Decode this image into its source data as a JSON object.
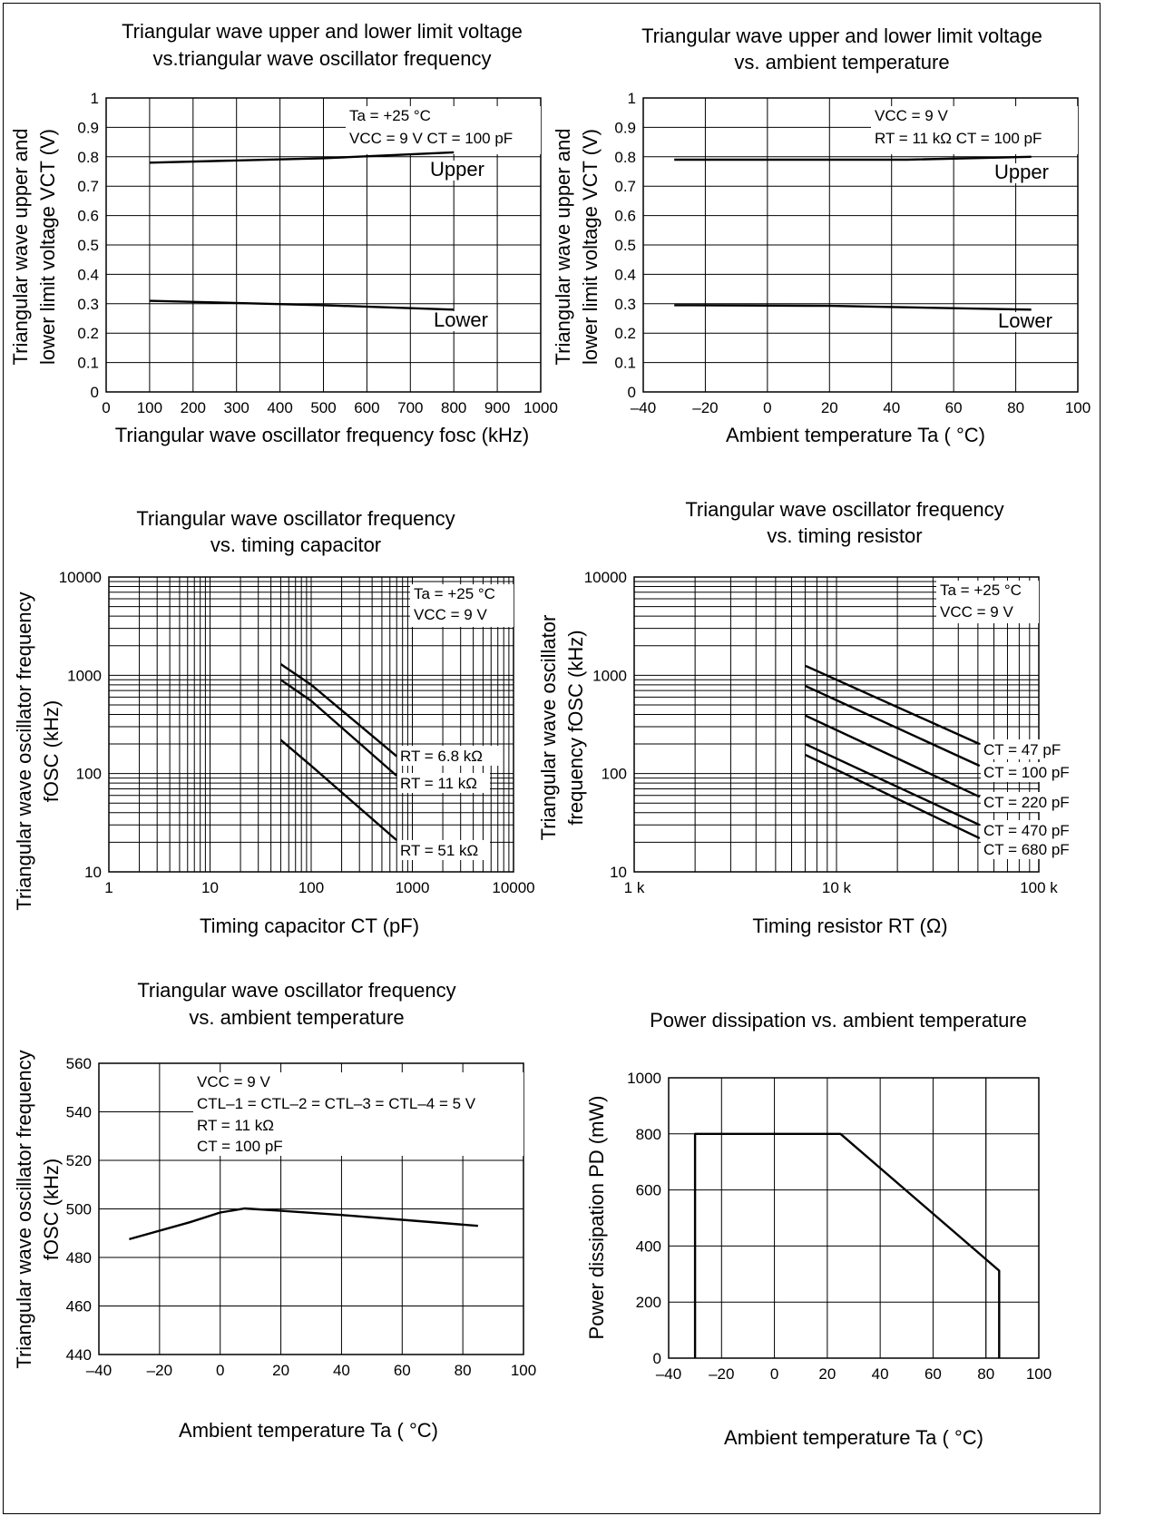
{
  "chart_data": [
    {
      "id": "c1",
      "type": "line",
      "title": [
        "Triangular wave upper and lower limit voltage",
        "vs.triangular wave oscillator frequency"
      ],
      "xlabel": "Triangular wave oscillator frequency fosc (kHz)",
      "ylabel": [
        "Triangular wave upper and",
        "lower limit voltage VCT (V)"
      ],
      "xlim": [
        0,
        1000
      ],
      "ylim": [
        0,
        1
      ],
      "xscale": "linear",
      "yscale": "linear",
      "x_ticks": [
        0,
        100,
        200,
        300,
        400,
        500,
        600,
        700,
        800,
        900,
        1000
      ],
      "x_tick_labels": [
        "0",
        "100",
        "200",
        "300",
        "400",
        "500",
        "600",
        "700",
        "800",
        "900",
        "1000"
      ],
      "y_ticks": [
        0,
        0.1,
        0.2,
        0.3,
        0.4,
        0.5,
        0.6,
        0.7,
        0.8,
        0.9,
        1
      ],
      "y_tick_labels": [
        "0",
        "0.1",
        "0.2",
        "0.3",
        "0.4",
        "0.5",
        "0.6",
        "0.7",
        "0.8",
        "0.9",
        "1"
      ],
      "grid": true,
      "annotations": [
        "Ta = +25 °C",
        "VCC = 9 V CT = 100 pF"
      ],
      "series": [
        {
          "name": "Upper",
          "x": [
            100,
            500,
            800
          ],
          "y": [
            0.78,
            0.795,
            0.815
          ]
        },
        {
          "name": "Lower",
          "x": [
            100,
            500,
            800
          ],
          "y": [
            0.31,
            0.295,
            0.28
          ]
        }
      ]
    },
    {
      "id": "c2",
      "type": "line",
      "title": [
        "Triangular wave upper and lower limit voltage",
        "vs. ambient temperature"
      ],
      "xlabel": "Ambient temperature Ta ( °C)",
      "ylabel": [
        "Triangular wave upper and",
        "lower limit voltage VCT (V)"
      ],
      "xlim": [
        -40,
        100
      ],
      "ylim": [
        0,
        1
      ],
      "xscale": "linear",
      "yscale": "linear",
      "x_ticks": [
        -40,
        -20,
        0,
        20,
        40,
        60,
        80,
        100
      ],
      "x_tick_labels": [
        "–40",
        "–20",
        "0",
        "20",
        "40",
        "60",
        "80",
        "100"
      ],
      "y_ticks": [
        0,
        0.1,
        0.2,
        0.3,
        0.4,
        0.5,
        0.6,
        0.7,
        0.8,
        0.9,
        1
      ],
      "y_tick_labels": [
        "0",
        "0.1",
        "0.2",
        "0.3",
        "0.4",
        "0.5",
        "0.6",
        "0.7",
        "0.8",
        "0.9",
        "1"
      ],
      "grid": true,
      "annotations": [
        "VCC = 9 V",
        "RT = 11 kΩ CT = 100 pF"
      ],
      "series": [
        {
          "name": "Upper",
          "x": [
            -30,
            45,
            85
          ],
          "y": [
            0.79,
            0.79,
            0.8
          ]
        },
        {
          "name": "Lower",
          "x": [
            -30,
            20,
            85
          ],
          "y": [
            0.295,
            0.293,
            0.28
          ]
        }
      ]
    },
    {
      "id": "c3",
      "type": "line",
      "title": [
        "Triangular wave oscillator frequency",
        "vs. timing capacitor"
      ],
      "xlabel": "Timing capacitor CT (pF)",
      "ylabel": [
        "Triangular wave oscillator frequency",
        "fOSC (kHz)"
      ],
      "xlim": [
        1,
        10000
      ],
      "ylim": [
        10,
        10000
      ],
      "xscale": "log",
      "yscale": "log",
      "x_ticks": [
        1,
        10,
        100,
        1000,
        10000
      ],
      "x_tick_labels": [
        "1",
        "10",
        "100",
        "1000",
        "10000"
      ],
      "y_ticks": [
        10,
        100,
        1000,
        10000
      ],
      "y_tick_labels": [
        "10",
        "100",
        "1000",
        "10000"
      ],
      "grid": true,
      "annotations": [
        "Ta = +25 °C",
        "VCC = 9 V"
      ],
      "series": [
        {
          "name": "RT = 6.8 kΩ",
          "x": [
            50,
            100,
            700
          ],
          "y": [
            1300,
            800,
            150
          ]
        },
        {
          "name": "RT = 11 kΩ",
          "x": [
            50,
            100,
            700
          ],
          "y": [
            900,
            550,
            95
          ]
        },
        {
          "name": "RT = 51 kΩ",
          "x": [
            50,
            100,
            700
          ],
          "y": [
            220,
            120,
            21
          ]
        }
      ]
    },
    {
      "id": "c4",
      "type": "line",
      "title": [
        "Triangular wave oscillator frequency",
        "vs. timing resistor"
      ],
      "xlabel": "Timing resistor RT (Ω)",
      "ylabel": [
        "Triangular wave oscillator",
        "frequency fOSC (kHz)"
      ],
      "xlim": [
        1000,
        100000
      ],
      "ylim": [
        10,
        10000
      ],
      "xscale": "log",
      "yscale": "log",
      "x_ticks": [
        1000,
        10000,
        100000
      ],
      "x_tick_labels": [
        "1 k",
        "10 k",
        "100 k"
      ],
      "y_ticks": [
        10,
        100,
        1000,
        10000
      ],
      "y_tick_labels": [
        "10",
        "100",
        "1000",
        "10000"
      ],
      "grid": true,
      "annotations": [
        "Ta = +25 °C",
        "VCC = 9 V"
      ],
      "series": [
        {
          "name": "CT = 47 pF",
          "x": [
            7000,
            51000
          ],
          "y": [
            1250,
            200
          ]
        },
        {
          "name": "CT = 100 pF",
          "x": [
            7000,
            51000
          ],
          "y": [
            780,
            120
          ]
        },
        {
          "name": "CT = 220 pF",
          "x": [
            7000,
            51000
          ],
          "y": [
            390,
            58
          ]
        },
        {
          "name": "CT = 470 pF",
          "x": [
            7000,
            51000
          ],
          "y": [
            200,
            30
          ]
        },
        {
          "name": "CT = 680 pF",
          "x": [
            7000,
            51000
          ],
          "y": [
            155,
            22
          ]
        }
      ]
    },
    {
      "id": "c5",
      "type": "line",
      "title": [
        "Triangular wave oscillator frequency",
        "vs. ambient temperature"
      ],
      "xlabel": "Ambient temperature Ta ( °C)",
      "ylabel": [
        "Triangular wave oscillator frequency",
        "fOSC (kHz)"
      ],
      "xlim": [
        -40,
        100
      ],
      "ylim": [
        440,
        560
      ],
      "xscale": "linear",
      "yscale": "linear",
      "x_ticks": [
        -40,
        -20,
        0,
        20,
        40,
        60,
        80,
        100
      ],
      "x_tick_labels": [
        "–40",
        "–20",
        "0",
        "20",
        "40",
        "60",
        "80",
        "100"
      ],
      "y_ticks": [
        440,
        460,
        480,
        500,
        520,
        540,
        560
      ],
      "y_tick_labels": [
        "440",
        "460",
        "480",
        "500",
        "520",
        "540",
        "560"
      ],
      "grid": true,
      "annotations": [
        "VCC = 9 V",
        "CTL–1 = CTL–2 = CTL–3 = CTL–4 = 5 V",
        "RT = 11 kΩ",
        "CT = 100 pF"
      ],
      "series": [
        {
          "name": "",
          "x": [
            -30,
            -10,
            0,
            8,
            20,
            40,
            60,
            85
          ],
          "y": [
            487.5,
            494.5,
            498.5,
            500.2,
            499.2,
            497.5,
            495.5,
            493
          ]
        }
      ]
    },
    {
      "id": "c6",
      "type": "line",
      "title": [
        "Power dissipation vs. ambient temperature"
      ],
      "xlabel": "Ambient temperature Ta ( °C)",
      "ylabel": [
        "Power dissipation PD (mW)"
      ],
      "xlim": [
        -40,
        100
      ],
      "ylim": [
        0,
        1000
      ],
      "xscale": "linear",
      "yscale": "linear",
      "x_ticks": [
        -40,
        -20,
        0,
        20,
        40,
        60,
        80,
        100
      ],
      "x_tick_labels": [
        "–40",
        "–20",
        "0",
        "20",
        "40",
        "60",
        "80",
        "100"
      ],
      "y_ticks": [
        0,
        200,
        400,
        600,
        800,
        1000
      ],
      "y_tick_labels": [
        "0",
        "200",
        "400",
        "600",
        "800",
        "1000"
      ],
      "grid": true,
      "extra_vgrid": [
        80
      ],
      "annotations": [],
      "series": [
        {
          "name": "",
          "x": [
            -30,
            -30,
            25,
            85,
            85
          ],
          "y": [
            0,
            800,
            800,
            312,
            0
          ]
        }
      ]
    }
  ]
}
